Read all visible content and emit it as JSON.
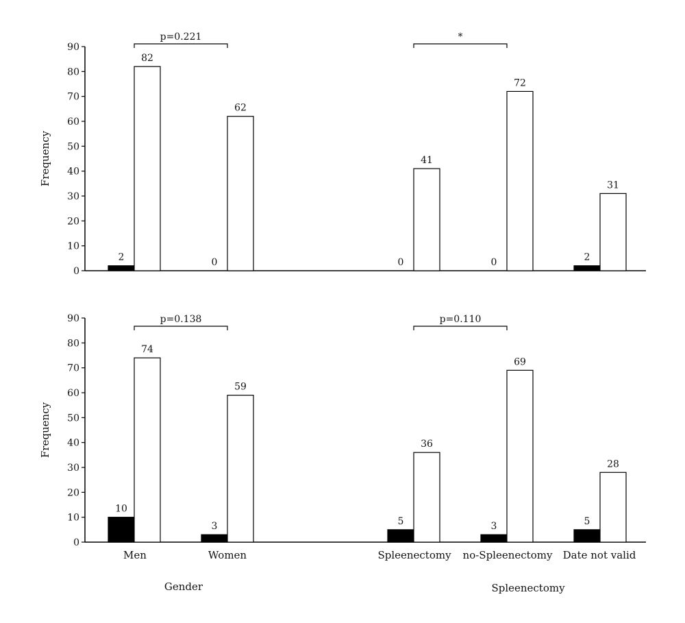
{
  "chart_data": [
    {
      "type": "bar",
      "ylabel": "Frequency",
      "ylim": [
        0,
        90
      ],
      "yticks": [
        0,
        10,
        20,
        30,
        40,
        50,
        60,
        70,
        80,
        90
      ],
      "categories": [
        "Men",
        "Women",
        "Spleenectomy",
        "no-Spleenectomy",
        "Date not valid"
      ],
      "series": [
        {
          "fill": "#000000",
          "values": [
            2,
            0,
            0,
            0,
            2
          ]
        },
        {
          "fill": "#ffffff",
          "values": [
            82,
            62,
            41,
            72,
            31
          ]
        }
      ],
      "brackets": [
        {
          "label": "p=0.221",
          "from": "Men",
          "to": "Women"
        },
        {
          "label": "*",
          "from": "Spleenectomy",
          "to": "no-Spleenectomy"
        }
      ],
      "show_category_labels": false,
      "grid": false
    },
    {
      "type": "bar",
      "ylabel": "Frequency",
      "ylim": [
        0,
        90
      ],
      "yticks": [
        0,
        10,
        20,
        30,
        40,
        50,
        60,
        70,
        80,
        90
      ],
      "categories": [
        "Men",
        "Women",
        "Spleenectomy",
        "no-Spleenectomy",
        "Date not valid"
      ],
      "series": [
        {
          "fill": "#000000",
          "values": [
            10,
            3,
            5,
            3,
            5
          ]
        },
        {
          "fill": "#ffffff",
          "values": [
            74,
            59,
            36,
            69,
            28
          ]
        }
      ],
      "brackets": [
        {
          "label": "p=0.138",
          "from": "Men",
          "to": "Women"
        },
        {
          "label": "p=0.110",
          "from": "Spleenectomy",
          "to": "no-Spleenectomy"
        }
      ],
      "show_category_labels": true,
      "grid": false
    }
  ],
  "group_labels": [
    "Gender",
    "Spleenectomy"
  ]
}
